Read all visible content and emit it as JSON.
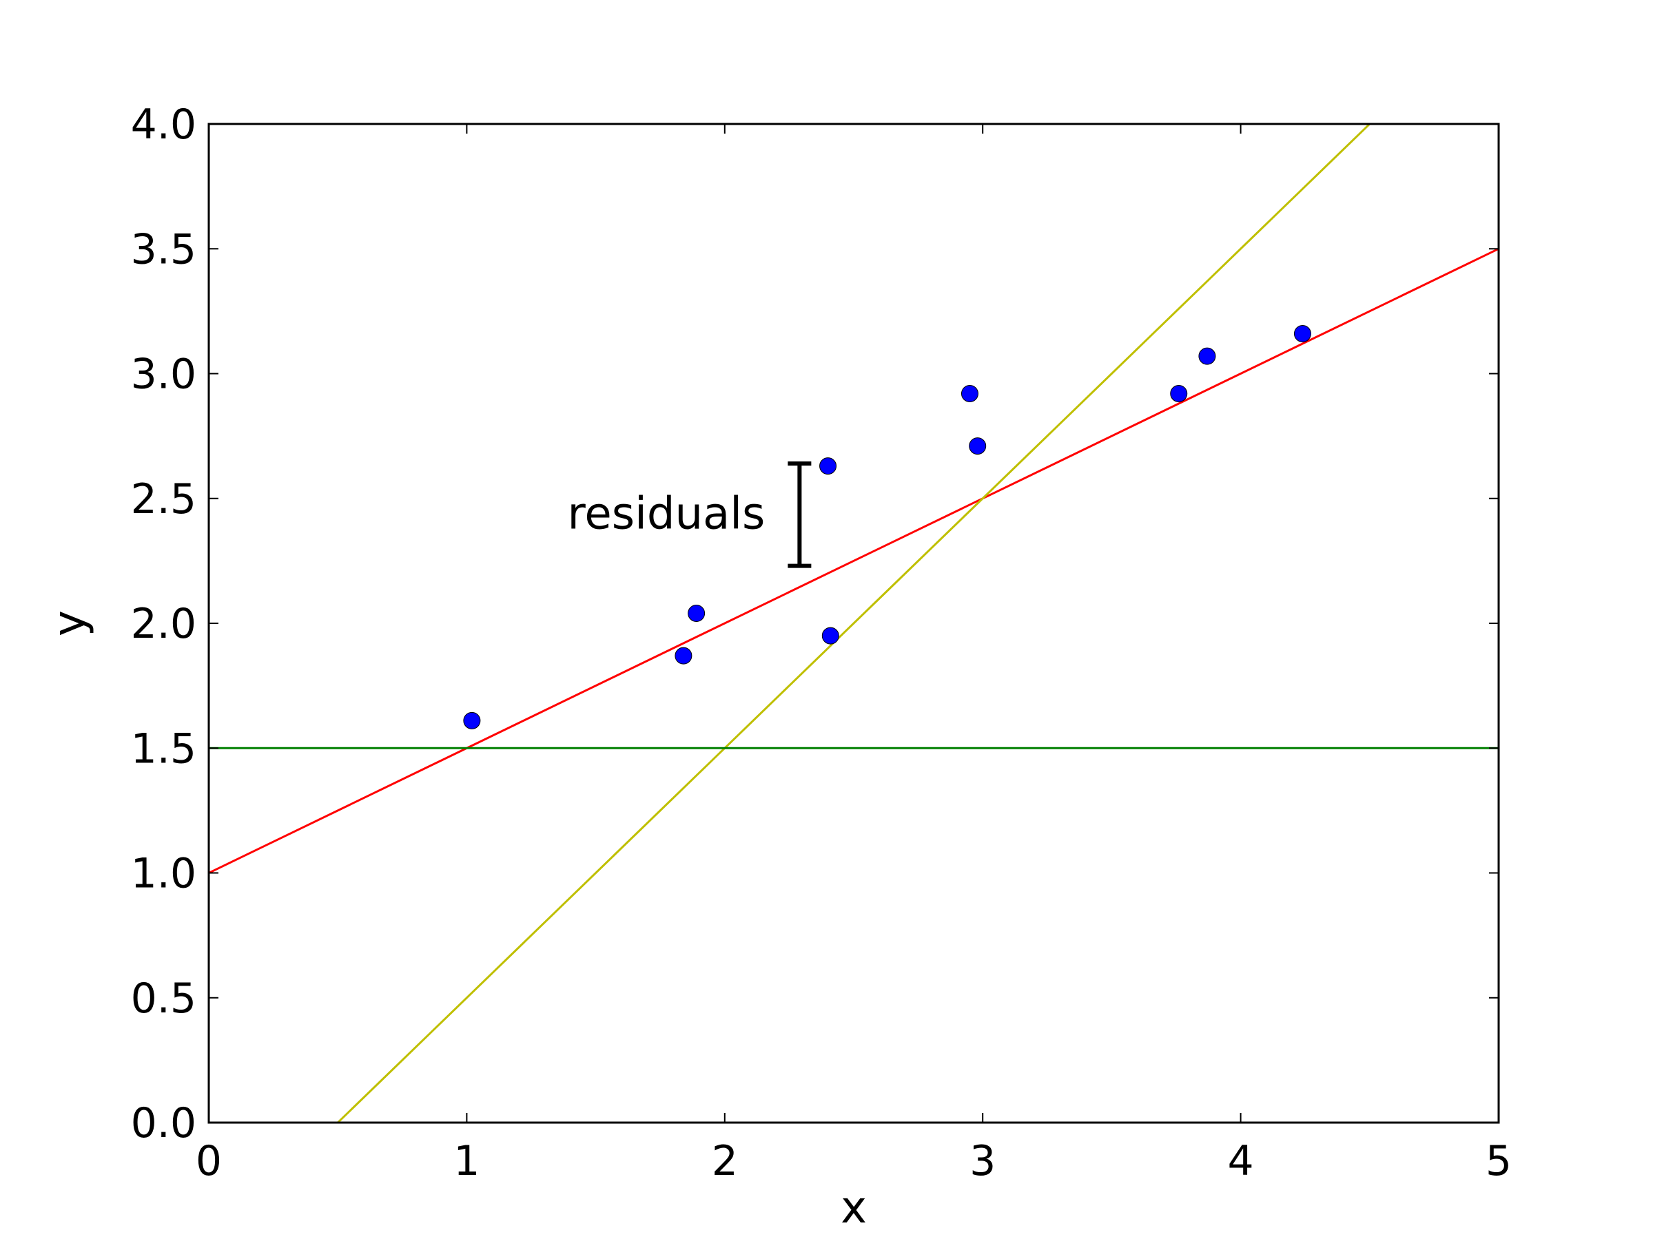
{
  "chart_data": {
    "type": "scatter",
    "title": "",
    "xlabel": "x",
    "ylabel": "y",
    "xlim": [
      0,
      5
    ],
    "ylim": [
      0,
      4
    ],
    "grid": false,
    "x_ticks": [
      0,
      1,
      2,
      3,
      4,
      5
    ],
    "x_tick_labels": [
      "0",
      "1",
      "2",
      "3",
      "4",
      "5"
    ],
    "y_ticks": [
      0,
      0.5,
      1,
      1.5,
      2,
      2.5,
      3,
      3.5,
      4
    ],
    "y_tick_labels": [
      "0.0",
      "0.5",
      "1.0",
      "1.5",
      "2.0",
      "2.5",
      "3.0",
      "3.5",
      "4.0"
    ],
    "points": {
      "color": "#0000ff",
      "x": [
        1.02,
        1.84,
        1.89,
        2.4,
        2.41,
        2.95,
        2.98,
        3.76,
        3.87,
        4.24
      ],
      "y": [
        1.61,
        1.87,
        2.04,
        2.63,
        1.95,
        2.92,
        2.71,
        2.92,
        3.07,
        3.16
      ]
    },
    "lines": [
      {
        "color": "#ff0000",
        "slope": 0.5,
        "intercept": 1.0
      },
      {
        "color": "#bfbf00",
        "slope": 1.0,
        "intercept": -0.5
      },
      {
        "color": "#008000",
        "slope": 0.0,
        "intercept": 1.5
      }
    ],
    "annotations": [
      {
        "text": "residuals",
        "marker": "bracket",
        "x": 2.29,
        "y_range": [
          2.23,
          2.64
        ]
      }
    ]
  }
}
